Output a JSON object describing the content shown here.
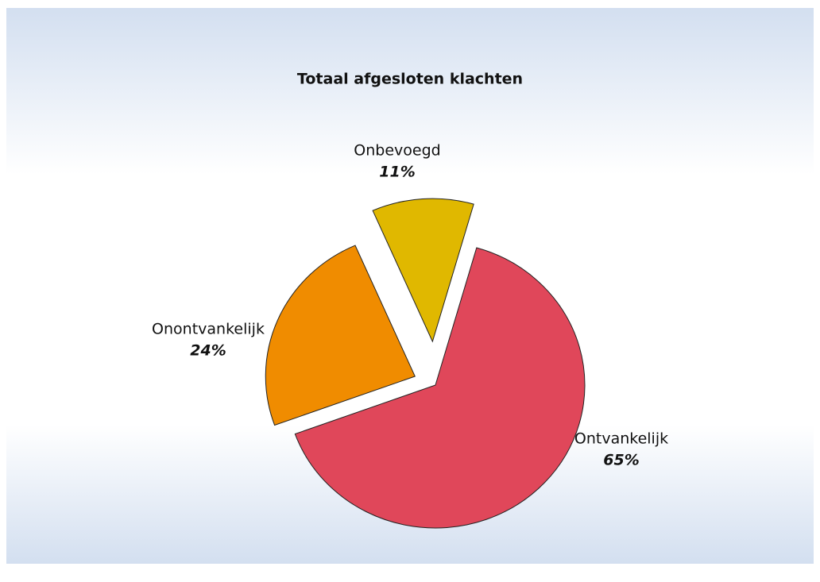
{
  "chart_data": {
    "type": "pie",
    "title": "Totaal afgesloten klachten",
    "categories": [
      "Ontvankelijk",
      "Onontvankelijk",
      "Onbevoegd"
    ],
    "values": [
      65,
      24,
      11
    ],
    "value_labels": [
      "65%",
      "24%",
      "11%"
    ],
    "colors": [
      "#e0475a",
      "#f08c00",
      "#e0b800"
    ]
  }
}
